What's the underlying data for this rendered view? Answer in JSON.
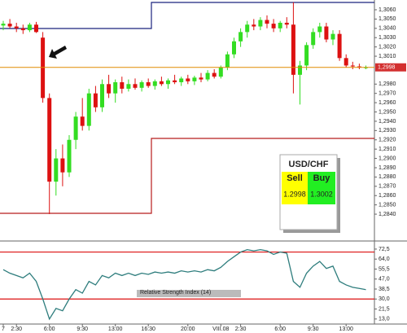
{
  "chart_data": [
    {
      "type": "candlestick",
      "categories": [
        "7",
        null,
        "2:30",
        null,
        null,
        null,
        null,
        "6:00",
        null,
        null,
        null,
        null,
        "9:30",
        null,
        null,
        null,
        null,
        "13:00",
        null,
        null,
        null,
        null,
        "16:30",
        null,
        null,
        null,
        null,
        null,
        "20:00",
        null,
        null,
        null,
        null,
        "VIII.08",
        null,
        null,
        "2:30",
        null,
        null,
        null,
        null,
        null,
        "6:00",
        null,
        null,
        null,
        null,
        "9:30",
        null,
        null,
        null,
        null,
        "13:00",
        null,
        null,
        null
      ],
      "open": [
        1.3043,
        1.3045,
        1.3042,
        1.304,
        1.3038,
        1.3044,
        1.303,
        1.2965,
        1.2875,
        1.29,
        1.2885,
        1.292,
        1.2945,
        1.2935,
        1.297,
        1.2955,
        1.298,
        1.297,
        1.2982,
        1.2975,
        1.298,
        1.2976,
        1.2982,
        1.2978,
        1.2983,
        1.298,
        1.2984,
        1.2982,
        1.2986,
        1.2983,
        1.2987,
        1.2985,
        1.2992,
        1.2988,
        1.2998,
        1.3012,
        1.3026,
        1.3036,
        1.3044,
        1.3042,
        1.3049,
        1.3045,
        1.304,
        1.3046,
        1.3044,
        1.299,
        1.3,
        1.3022,
        1.3036,
        1.3042,
        1.3028,
        1.3034,
        1.3008,
        1.3,
        1.2999,
        1.2998
      ],
      "high": [
        1.3048,
        1.305,
        1.3046,
        1.3044,
        1.3046,
        1.3047,
        1.3036,
        1.297,
        1.291,
        1.2915,
        1.2925,
        1.295,
        1.2965,
        1.2975,
        1.2978,
        1.2985,
        1.299,
        1.2985,
        1.2988,
        1.2985,
        1.2986,
        1.2984,
        1.2986,
        1.2985,
        1.2988,
        1.2986,
        1.299,
        1.2988,
        1.299,
        1.2989,
        1.2992,
        1.2995,
        1.2996,
        1.3,
        1.3015,
        1.303,
        1.304,
        1.3048,
        1.305,
        1.3052,
        1.3054,
        1.305,
        1.3048,
        1.3052,
        1.3068,
        1.3005,
        1.3025,
        1.304,
        1.3046,
        1.3046,
        1.3038,
        1.3038,
        1.3012,
        1.3004,
        1.3002,
        1.3
      ],
      "low": [
        1.3038,
        1.304,
        1.3036,
        1.3034,
        1.3036,
        1.3035,
        1.296,
        1.284,
        1.286,
        1.287,
        1.288,
        1.291,
        1.293,
        1.293,
        1.295,
        1.295,
        1.2965,
        1.296,
        1.297,
        1.2972,
        1.2974,
        1.2972,
        1.2976,
        1.2974,
        1.2978,
        1.2975,
        1.298,
        1.2978,
        1.298,
        1.2979,
        1.2982,
        1.2983,
        1.2986,
        1.2986,
        1.2995,
        1.3008,
        1.302,
        1.303,
        1.3038,
        1.3038,
        1.304,
        1.3036,
        1.3036,
        1.304,
        1.297,
        1.2958,
        1.2995,
        1.3018,
        1.303,
        1.3025,
        1.3022,
        1.3005,
        1.2998,
        1.2996,
        1.2996,
        1.2996
      ],
      "close": [
        1.3045,
        1.3042,
        1.304,
        1.3038,
        1.3044,
        1.3036,
        1.2965,
        1.2875,
        1.29,
        1.2885,
        1.292,
        1.2945,
        1.2935,
        1.297,
        1.2955,
        1.298,
        1.297,
        1.2982,
        1.2975,
        1.298,
        1.2976,
        1.2982,
        1.2978,
        1.2983,
        1.298,
        1.2984,
        1.2982,
        1.2986,
        1.2983,
        1.2987,
        1.2985,
        1.2992,
        1.2988,
        1.2998,
        1.3012,
        1.3026,
        1.3036,
        1.3044,
        1.3042,
        1.3049,
        1.3045,
        1.304,
        1.3046,
        1.3044,
        1.299,
        1.3,
        1.3022,
        1.3036,
        1.3042,
        1.3028,
        1.3034,
        1.3008,
        1.3,
        1.2999,
        1.2998,
        1.2998
      ],
      "up_color": "#33dd22",
      "down_color": "#dd1111",
      "ylim": [
        1.2812,
        1.30705
      ],
      "yticks": [
        {
          "value": 1.306,
          "label": "1,3060"
        },
        {
          "value": 1.305,
          "label": "1,3050"
        },
        {
          "value": 1.304,
          "label": "1,3040"
        },
        {
          "value": 1.303,
          "label": "1,3030"
        },
        {
          "value": 1.302,
          "label": "1,3020"
        },
        {
          "value": 1.301,
          "label": "1,3010"
        },
        {
          "value": 1.298,
          "label": "1,2980"
        },
        {
          "value": 1.297,
          "label": "1,2970"
        },
        {
          "value": 1.296,
          "label": "1,2960"
        },
        {
          "value": 1.295,
          "label": "1,2950"
        },
        {
          "value": 1.294,
          "label": "1,2940"
        },
        {
          "value": 1.293,
          "label": "1,2930"
        },
        {
          "value": 1.292,
          "label": "1,2920"
        },
        {
          "value": 1.291,
          "label": "1,2910"
        },
        {
          "value": 1.29,
          "label": "1,2900"
        },
        {
          "value": 1.289,
          "label": "1,2890"
        },
        {
          "value": 1.288,
          "label": "1,2880"
        },
        {
          "value": 1.287,
          "label": "1,2870"
        },
        {
          "value": 1.286,
          "label": "1,2860"
        },
        {
          "value": 1.285,
          "label": "1,2850"
        },
        {
          "value": 1.284,
          "label": "1,2840"
        }
      ],
      "last_price": {
        "value": 1.2998,
        "label": "1,2998"
      }
    },
    {
      "type": "line",
      "label": "Relative Strength Index (14)",
      "values": [
        55,
        52,
        50,
        48,
        52,
        45,
        30,
        13,
        22,
        20,
        30,
        38,
        35,
        45,
        42,
        50,
        48,
        52,
        50,
        52,
        50,
        52,
        51,
        53,
        52,
        53,
        52,
        54,
        53,
        54,
        53,
        55,
        54,
        57,
        62,
        66,
        70,
        72,
        71,
        72,
        71,
        68,
        70,
        69,
        45,
        40,
        52,
        58,
        62,
        56,
        58,
        45,
        42,
        40,
        39,
        38
      ],
      "color": "#2e7d7d",
      "level_color": "#dd1111",
      "levels": [
        70,
        30
      ],
      "ylim": [
        9.4,
        78
      ],
      "yticks": [
        {
          "value": 72.5,
          "label": "72,5"
        },
        {
          "value": 64,
          "label": "64,0"
        },
        {
          "value": 55.5,
          "label": "55,5"
        },
        {
          "value": 47,
          "label": "47,0"
        },
        {
          "value": 38.5,
          "label": "38,5"
        },
        {
          "value": 30,
          "label": "30,0"
        },
        {
          "value": 21.5,
          "label": "21,5"
        },
        {
          "value": 13,
          "label": "13,0"
        }
      ]
    }
  ],
  "quote": {
    "pair": "USD/CHF",
    "sell_label": "Sell",
    "buy_label": "Buy",
    "sell": "1.2998",
    "buy": "1.3002"
  }
}
